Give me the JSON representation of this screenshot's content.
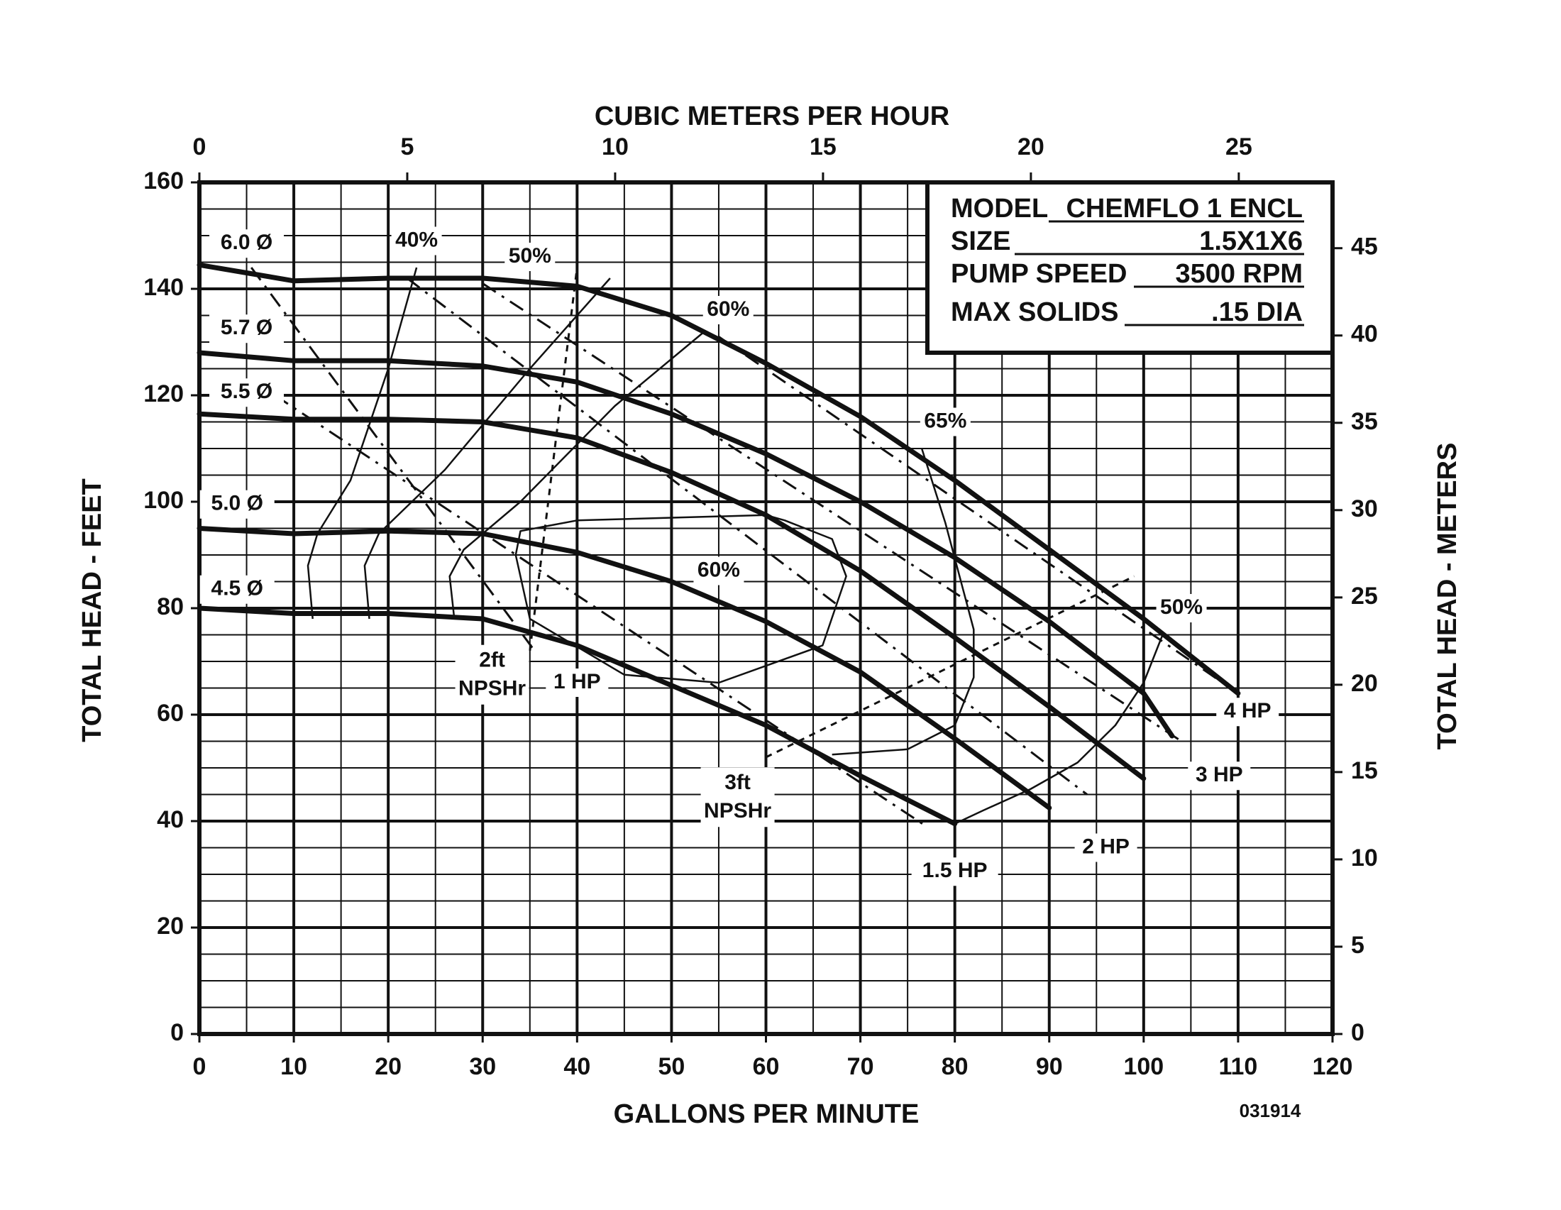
{
  "chart_data": {
    "type": "line",
    "xlabel": "GALLONS PER MINUTE",
    "x2label": "CUBIC METERS PER HOUR",
    "ylabel": "TOTAL HEAD - FEET",
    "y2label": "TOTAL HEAD - METERS",
    "xlim": [
      0,
      120
    ],
    "ylim": [
      0,
      160
    ],
    "x_ticks": [
      0,
      10,
      20,
      30,
      40,
      50,
      60,
      70,
      80,
      90,
      100,
      110,
      120
    ],
    "y_ticks": [
      0,
      20,
      40,
      60,
      80,
      100,
      120,
      140,
      160
    ],
    "x2_ticks": [
      0,
      5,
      10,
      15,
      20,
      25
    ],
    "y2_ticks": [
      0,
      5,
      10,
      15,
      20,
      25,
      30,
      35,
      40,
      45
    ],
    "grid": true,
    "doc_code": "031914",
    "info_box": {
      "model_label": "MODEL",
      "model_value": "CHEMFLO 1 ENCL",
      "size_label": "SIZE",
      "size_value": "1.5X1X6",
      "speed_label": "PUMP SPEED",
      "speed_value": "3500 RPM",
      "solids_label": "MAX SOLIDS",
      "solids_value": ".15 DIA"
    },
    "series": [
      {
        "name": "6.0 Ø",
        "x": [
          0,
          5,
          10,
          20,
          30,
          40,
          50,
          60,
          70,
          80,
          90,
          100,
          110
        ],
        "y": [
          144.5,
          143,
          141.5,
          142,
          142,
          140.5,
          135,
          126,
          116,
          104,
          91,
          78,
          64
        ]
      },
      {
        "name": "5.7 Ø",
        "x": [
          0,
          10,
          20,
          30,
          40,
          50,
          60,
          70,
          80,
          90,
          100,
          103
        ],
        "y": [
          128,
          126.5,
          126.5,
          125.5,
          122.5,
          116.5,
          109,
          100,
          89.5,
          77.5,
          64,
          56
        ]
      },
      {
        "name": "5.5 Ø",
        "x": [
          0,
          10,
          20,
          30,
          40,
          50,
          60,
          70,
          80,
          90,
          100
        ],
        "y": [
          116.5,
          115.5,
          115.5,
          115,
          112,
          105.5,
          97.5,
          87,
          74.5,
          61.5,
          48
        ]
      },
      {
        "name": "5.0 Ø",
        "x": [
          0,
          10,
          20,
          30,
          40,
          50,
          60,
          70,
          80,
          90
        ],
        "y": [
          95,
          94,
          94.5,
          94,
          90.5,
          85,
          77.5,
          68,
          55.5,
          42.5
        ]
      },
      {
        "name": "4.5 Ø",
        "x": [
          0,
          10,
          20,
          30,
          40,
          50,
          60,
          70,
          80
        ],
        "y": [
          80,
          79,
          79,
          78,
          73,
          65.5,
          58,
          48.5,
          39.5
        ]
      }
    ],
    "efficiency_curves": [
      {
        "name": "40%",
        "x": [
          23,
          20,
          16,
          12.5,
          11.5,
          12
        ],
        "y": [
          144,
          125,
          104,
          94,
          88,
          78
        ]
      },
      {
        "name": "50%",
        "x": [
          43.5,
          35,
          26,
          19,
          17.5,
          18
        ],
        "y": [
          142,
          125,
          106,
          94,
          88,
          78
        ]
      },
      {
        "name": "60%",
        "x": [
          53.5,
          44,
          34,
          28,
          26.5,
          27
        ],
        "y": [
          132,
          118,
          100,
          91,
          86,
          78
        ]
      },
      {
        "name": "65%",
        "x": [
          60,
          50,
          40,
          34,
          33.5,
          35,
          45,
          55,
          66,
          68.5,
          67,
          62,
          60
        ],
        "y": [
          97.5,
          97,
          96.5,
          94.5,
          90,
          78,
          67.5,
          66,
          73,
          86,
          93,
          96.5,
          97.5
        ]
      },
      {
        "name": "60%",
        "x": [
          76.5,
          79,
          82,
          82,
          80,
          75,
          67
        ],
        "y": [
          110,
          96,
          76,
          67,
          58,
          53.5,
          52.5
        ]
      },
      {
        "name": "50%",
        "x": [
          102,
          100,
          97,
          93,
          88,
          83,
          80
        ],
        "y": [
          75,
          66,
          58,
          51,
          46,
          42,
          39.5
        ]
      }
    ],
    "npsh_curves": [
      {
        "name": "2ft NPSHr",
        "x": [
          35,
          40
        ],
        "y": [
          72,
          144
        ]
      },
      {
        "name": "3ft NPSHr",
        "x": [
          60,
          99
        ],
        "y": [
          52,
          86
        ]
      }
    ],
    "horsepower_lines": [
      {
        "name": "1 HP",
        "x": [
          5.5,
          35.5
        ],
        "y": [
          144,
          72
        ]
      },
      {
        "name": "1.5 HP",
        "x": [
          8,
          77
        ],
        "y": [
          120,
          39
        ]
      },
      {
        "name": "2 HP",
        "x": [
          22,
          94
        ],
        "y": [
          142,
          45
        ]
      },
      {
        "name": "3 HP",
        "x": [
          30,
          104
        ],
        "y": [
          141,
          55
        ]
      },
      {
        "name": "4 HP",
        "x": [
          55,
          110
        ],
        "y": [
          131,
          64
        ]
      }
    ]
  }
}
